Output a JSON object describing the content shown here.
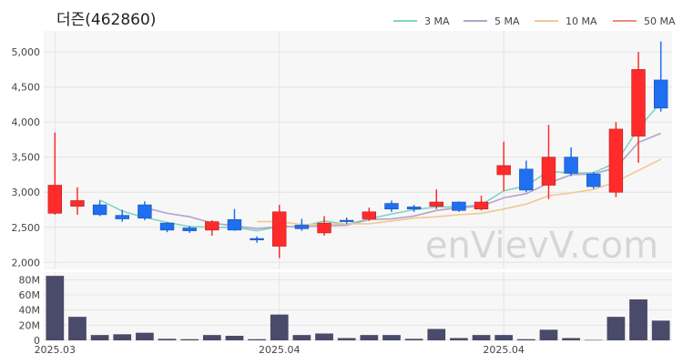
{
  "chart_data": {
    "type": "candlestick",
    "title": "더즌(462860)",
    "watermark": "enVievV.com",
    "legend": [
      {
        "label": "3 MA",
        "color": "#7fd4c1"
      },
      {
        "label": "5 MA",
        "color": "#b3a3c8"
      },
      {
        "label": "10 MA",
        "color": "#f2c892"
      },
      {
        "label": "50 MA",
        "color": "#f28c7a"
      }
    ],
    "legend_position": "top-right",
    "grid": true,
    "up_color": "#ff2b2b",
    "down_color": "#1f6ff0",
    "volume_color": "#4a4a6a",
    "price_axis": {
      "ylim": [
        1900,
        5300
      ],
      "ticks": [
        2000,
        2500,
        3000,
        3500,
        4000,
        4500,
        5000
      ],
      "tick_labels": [
        "2,000",
        "2,500",
        "3,000",
        "3,500",
        "4,000",
        "4,500",
        "5,000"
      ]
    },
    "volume_axis": {
      "ylim": [
        0,
        90
      ],
      "ticks": [
        0,
        20,
        40,
        60,
        80
      ],
      "tick_labels": [
        "0",
        "20M",
        "40M",
        "60M",
        "80M"
      ]
    },
    "x_labels": [
      {
        "index": 0,
        "label": "2025.03"
      },
      {
        "index": 10,
        "label": "2025.04"
      },
      {
        "index": 20,
        "label": "2025.04"
      }
    ],
    "candles": [
      {
        "o": 2700,
        "h": 3850,
        "l": 2680,
        "c": 3100,
        "v": 85
      },
      {
        "o": 2800,
        "h": 3070,
        "l": 2680,
        "c": 2880,
        "v": 31
      },
      {
        "o": 2820,
        "h": 2880,
        "l": 2660,
        "c": 2680,
        "v": 7
      },
      {
        "o": 2670,
        "h": 2750,
        "l": 2580,
        "c": 2620,
        "v": 8
      },
      {
        "o": 2820,
        "h": 2870,
        "l": 2600,
        "c": 2630,
        "v": 10
      },
      {
        "o": 2560,
        "h": 2570,
        "l": 2430,
        "c": 2460,
        "v": 2
      },
      {
        "o": 2490,
        "h": 2520,
        "l": 2420,
        "c": 2450,
        "v": 1.5
      },
      {
        "o": 2460,
        "h": 2600,
        "l": 2380,
        "c": 2580,
        "v": 7
      },
      {
        "o": 2610,
        "h": 2760,
        "l": 2450,
        "c": 2460,
        "v": 6
      },
      {
        "o": 2340,
        "h": 2370,
        "l": 2280,
        "c": 2320,
        "v": 1.5
      },
      {
        "o": 2230,
        "h": 2820,
        "l": 2060,
        "c": 2720,
        "v": 34
      },
      {
        "o": 2530,
        "h": 2620,
        "l": 2450,
        "c": 2480,
        "v": 7
      },
      {
        "o": 2420,
        "h": 2660,
        "l": 2380,
        "c": 2560,
        "v": 9
      },
      {
        "o": 2600,
        "h": 2640,
        "l": 2550,
        "c": 2580,
        "v": 3
      },
      {
        "o": 2620,
        "h": 2780,
        "l": 2590,
        "c": 2720,
        "v": 7
      },
      {
        "o": 2840,
        "h": 2880,
        "l": 2720,
        "c": 2760,
        "v": 7
      },
      {
        "o": 2790,
        "h": 2820,
        "l": 2720,
        "c": 2760,
        "v": 2
      },
      {
        "o": 2800,
        "h": 3040,
        "l": 2760,
        "c": 2860,
        "v": 15
      },
      {
        "o": 2860,
        "h": 2870,
        "l": 2720,
        "c": 2740,
        "v": 3
      },
      {
        "o": 2760,
        "h": 2950,
        "l": 2740,
        "c": 2860,
        "v": 7
      },
      {
        "o": 3250,
        "h": 3720,
        "l": 3020,
        "c": 3380,
        "v": 7
      },
      {
        "o": 3330,
        "h": 3450,
        "l": 3000,
        "c": 3030,
        "v": 1.5
      },
      {
        "o": 3100,
        "h": 3960,
        "l": 2900,
        "c": 3500,
        "v": 14
      },
      {
        "o": 3500,
        "h": 3640,
        "l": 3230,
        "c": 3270,
        "v": 3
      },
      {
        "o": 3260,
        "h": 3290,
        "l": 3050,
        "c": 3080,
        "v": 0.5
      },
      {
        "o": 3000,
        "h": 4000,
        "l": 2930,
        "c": 3900,
        "v": 31
      },
      {
        "o": 3800,
        "h": 5000,
        "l": 3420,
        "c": 4750,
        "v": 54
      },
      {
        "o": 4600,
        "h": 5150,
        "l": 4150,
        "c": 4200,
        "v": 26
      }
    ],
    "ma3": [
      null,
      null,
      2890,
      2730,
      2640,
      2570,
      2510,
      2500,
      2500,
      2450,
      2510,
      2510,
      2590,
      2540,
      2620,
      2690,
      2750,
      2790,
      2790,
      2820,
      3020,
      3090,
      3300,
      3270,
      3280,
      3420,
      3910,
      4280
    ],
    "ma5": [
      null,
      null,
      null,
      null,
      2780,
      2700,
      2650,
      2560,
      2520,
      2480,
      2510,
      2510,
      2520,
      2530,
      2610,
      2620,
      2660,
      2740,
      2780,
      2800,
      2920,
      2980,
      3130,
      3250,
      3260,
      3350,
      3710,
      3840
    ],
    "ma10": [
      null,
      null,
      null,
      null,
      null,
      null,
      null,
      null,
      null,
      2580,
      2580,
      2540,
      2540,
      2550,
      2550,
      2590,
      2630,
      2650,
      2680,
      2700,
      2760,
      2830,
      2950,
      2990,
      3040,
      3150,
      3310,
      3470
    ],
    "ma50": []
  }
}
